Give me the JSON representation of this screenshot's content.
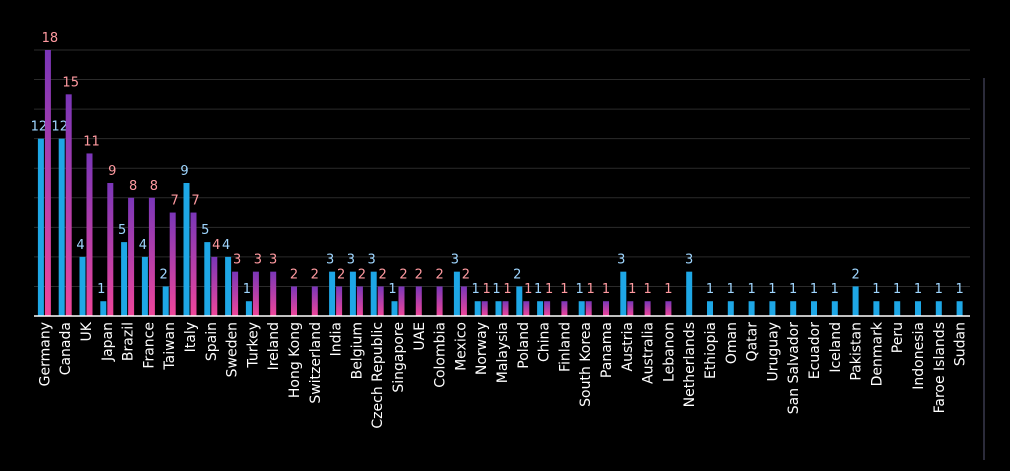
{
  "chart_data": {
    "type": "bar",
    "grid": true,
    "legend": "none",
    "ylim": [
      0,
      18
    ],
    "ytick_step": 2,
    "colors": {
      "series_a": "#1ea7e6",
      "series_b_gradient": [
        "#f0469a",
        "#7a36b8"
      ],
      "label_a": "#9fd6ff",
      "label_b": "#ff9aa0",
      "background": "#000000"
    },
    "categories": [
      "Germany",
      "Canada",
      "UK",
      "Japan",
      "Brazil",
      "France",
      "Taiwan",
      "Italy",
      "Spain",
      "Sweden",
      "Turkey",
      "Ireland",
      "Hong Kong",
      "Switzerland",
      "India",
      "Belgium",
      "Czech Republic",
      "Singapore",
      "UAE",
      "Colombia",
      "Mexico",
      "Norway",
      "Malaysia",
      "Poland",
      "China",
      "Finland",
      "South Korea",
      "Panama",
      "Austria",
      "Australia",
      "Lebanon",
      "Netherlands",
      "Ethiopia",
      "Oman",
      "Qatar",
      "Uruguay",
      "San Salvador",
      "Ecuador",
      "Iceland",
      "Pakistan",
      "Denmark",
      "Peru",
      "Indonesia",
      "Faroe Islands",
      "Sudan"
    ],
    "series": [
      {
        "values": [
          12,
          12,
          4,
          1,
          5,
          4,
          2,
          9,
          5,
          4,
          1,
          null,
          null,
          null,
          3,
          3,
          3,
          1,
          null,
          null,
          3,
          1,
          1,
          2,
          1,
          null,
          1,
          null,
          3,
          null,
          null,
          3,
          1,
          1,
          1,
          1,
          1,
          1,
          1,
          2,
          1,
          1,
          1,
          1,
          1
        ]
      },
      {
        "values": [
          18,
          15,
          11,
          9,
          8,
          8,
          7,
          7,
          4,
          3,
          3,
          3,
          2,
          2,
          2,
          2,
          2,
          2,
          2,
          2,
          2,
          1,
          1,
          1,
          1,
          1,
          1,
          1,
          1,
          1,
          1,
          null,
          null,
          null,
          null,
          null,
          null,
          null,
          null,
          null,
          null,
          null,
          null,
          null,
          null
        ]
      }
    ]
  }
}
